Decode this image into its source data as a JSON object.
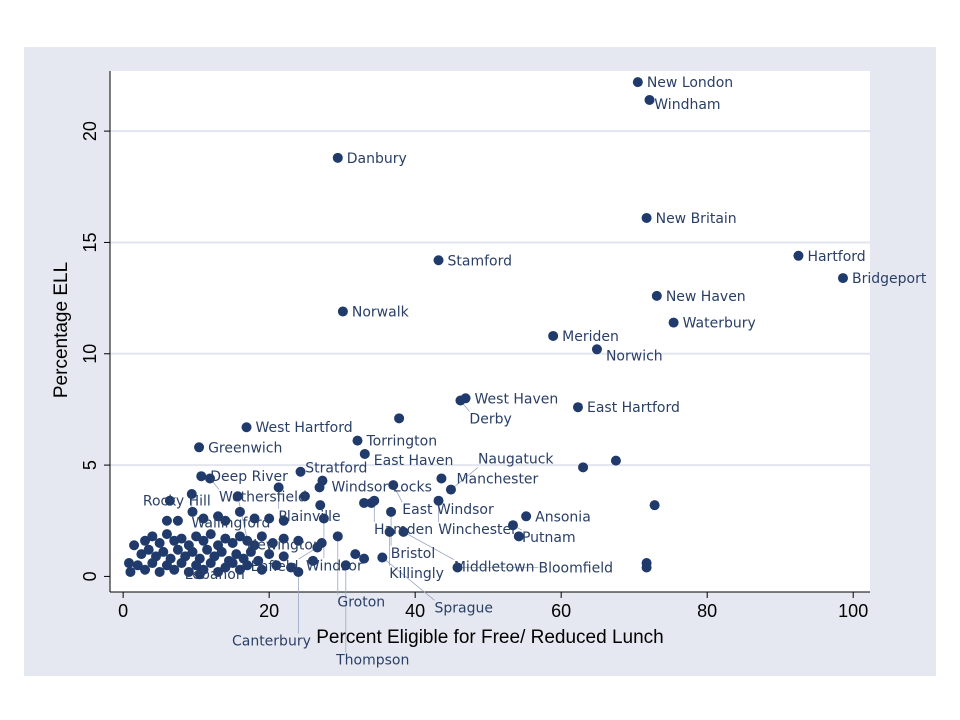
{
  "chart_data": {
    "type": "scatter",
    "title": "",
    "xlabel": "Percent Eligible for Free/ Reduced Lunch",
    "ylabel": "Percentage ELL",
    "xlim": [
      -1.8,
      102.3
    ],
    "ylim": [
      -0.7,
      22.7
    ],
    "xticks": [
      0,
      20,
      40,
      60,
      80,
      100
    ],
    "yticks": [
      0,
      5,
      10,
      15,
      20
    ],
    "grid": "horizontal",
    "colors": {
      "marker": "#1f3a6b",
      "label": "#2a3f66",
      "outer_bg": "#e6e8f1",
      "grid": "#e2e5ee"
    },
    "labeled_points": [
      {
        "label": "New London",
        "x": 70.5,
        "y": 22.2
      },
      {
        "label": "Windham",
        "x": 72.1,
        "y": 21.4
      },
      {
        "label": "Danbury",
        "x": 29.4,
        "y": 18.8
      },
      {
        "label": "New Britain",
        "x": 71.7,
        "y": 16.1
      },
      {
        "label": "Hartford",
        "x": 92.5,
        "y": 14.4
      },
      {
        "label": "Stamford",
        "x": 43.2,
        "y": 14.2
      },
      {
        "label": "Bridgeport",
        "x": 98.6,
        "y": 13.4
      },
      {
        "label": "New Haven",
        "x": 73.1,
        "y": 12.6
      },
      {
        "label": "Norwalk",
        "x": 30.1,
        "y": 11.9
      },
      {
        "label": "Waterbury",
        "x": 75.4,
        "y": 11.4
      },
      {
        "label": "Meriden",
        "x": 58.9,
        "y": 10.8
      },
      {
        "label": "Norwich",
        "x": 64.9,
        "y": 10.2
      },
      {
        "label": "West Haven",
        "x": 46.9,
        "y": 8.0
      },
      {
        "label": "Derby",
        "x": 46.2,
        "y": 7.9
      },
      {
        "label": "East Hartford",
        "x": 62.3,
        "y": 7.6
      },
      {
        "label": "West Hartford",
        "x": 16.9,
        "y": 6.7
      },
      {
        "label": "Torrington",
        "x": 32.1,
        "y": 6.1
      },
      {
        "label": "Greenwich",
        "x": 10.4,
        "y": 5.8
      },
      {
        "label": "East Haven",
        "x": 33.1,
        "y": 5.5
      },
      {
        "label": "Stratford",
        "x": 24.3,
        "y": 4.7
      },
      {
        "label": "Deep River",
        "x": 10.7,
        "y": 4.5
      },
      {
        "label": "Wethersfield",
        "x": 11.9,
        "y": 4.4
      },
      {
        "label": "Manchester",
        "x": 43.6,
        "y": 4.4
      },
      {
        "label": "Windsor Locks",
        "x": 27.3,
        "y": 4.3
      },
      {
        "label": "East Windsor",
        "x": 37.0,
        "y": 4.1
      },
      {
        "label": "Plainville",
        "x": 21.3,
        "y": 4.0
      },
      {
        "label": "Naugatuck",
        "x": 44.9,
        "y": 3.9
      },
      {
        "label": "Wallingford",
        "x": 9.4,
        "y": 3.7
      },
      {
        "label": "Newington",
        "x": 15.7,
        "y": 3.6
      },
      {
        "label": "Rocky Hill",
        "x": 6.4,
        "y": 3.4
      },
      {
        "label": "Hamden",
        "x": 34.4,
        "y": 3.4
      },
      {
        "label": "Winchester",
        "x": 43.2,
        "y": 3.4
      },
      {
        "label": "Bristol",
        "x": 36.7,
        "y": 2.9
      },
      {
        "label": "Ansonia",
        "x": 55.2,
        "y": 2.7
      },
      {
        "label": "Windsor",
        "x": 27.5,
        "y": 2.6
      },
      {
        "label": "Putnam",
        "x": 53.4,
        "y": 2.3
      },
      {
        "label": "Killingly",
        "x": 36.5,
        "y": 2.0
      },
      {
        "label": "Middletown",
        "x": 38.4,
        "y": 2.0
      },
      {
        "label": "Groton",
        "x": 29.4,
        "y": 1.8
      },
      {
        "label": "Enfield",
        "x": 26.6,
        "y": 1.3
      },
      {
        "label": "Sprague",
        "x": 35.5,
        "y": 0.85
      },
      {
        "label": "Bloomfield",
        "x": 45.8,
        "y": 0.4
      },
      {
        "label": "Thompson",
        "x": 30.5,
        "y": 0.5
      },
      {
        "label": "Canterbury",
        "x": 24.0,
        "y": 0.2
      },
      {
        "label": "Lebanon",
        "x": 10.5,
        "y": 0.1
      }
    ],
    "unlabeled_points": [
      [
        37.8,
        7.1
      ],
      [
        67.5,
        5.2
      ],
      [
        63.0,
        4.9
      ],
      [
        72.8,
        3.2
      ],
      [
        54.2,
        1.8
      ],
      [
        71.7,
        0.6
      ],
      [
        71.7,
        0.4
      ],
      [
        26.9,
        4.0
      ],
      [
        24.9,
        3.6
      ],
      [
        27.0,
        3.2
      ],
      [
        33.0,
        3.3
      ],
      [
        34.0,
        3.3
      ],
      [
        27.2,
        1.5
      ],
      [
        31.8,
        1.0
      ],
      [
        33.0,
        0.8
      ],
      [
        7.5,
        2.5
      ],
      [
        6.0,
        2.5
      ],
      [
        9.5,
        2.9
      ],
      [
        11.0,
        2.6
      ],
      [
        13.0,
        2.7
      ],
      [
        14.0,
        2.5
      ],
      [
        16.0,
        2.9
      ],
      [
        18.0,
        2.6
      ],
      [
        20.0,
        2.6
      ],
      [
        22.0,
        2.5
      ],
      [
        3.0,
        1.6
      ],
      [
        4.0,
        1.8
      ],
      [
        5.0,
        1.5
      ],
      [
        6.0,
        1.9
      ],
      [
        7.0,
        1.6
      ],
      [
        8.0,
        1.7
      ],
      [
        9.0,
        1.4
      ],
      [
        10.0,
        1.8
      ],
      [
        11.0,
        1.6
      ],
      [
        12.0,
        1.9
      ],
      [
        13.0,
        1.4
      ],
      [
        14.0,
        1.7
      ],
      [
        15.0,
        1.5
      ],
      [
        16.0,
        1.8
      ],
      [
        17.0,
        1.6
      ],
      [
        18.0,
        1.4
      ],
      [
        19.0,
        1.8
      ],
      [
        20.5,
        1.5
      ],
      [
        22.0,
        1.7
      ],
      [
        24.0,
        1.6
      ],
      [
        1.5,
        1.4
      ],
      [
        2.5,
        1.0
      ],
      [
        3.5,
        1.2
      ],
      [
        4.5,
        0.9
      ],
      [
        5.5,
        1.1
      ],
      [
        6.5,
        0.8
      ],
      [
        7.5,
        1.2
      ],
      [
        8.5,
        0.9
      ],
      [
        9.5,
        1.1
      ],
      [
        10.5,
        0.8
      ],
      [
        11.5,
        1.2
      ],
      [
        12.5,
        0.9
      ],
      [
        13.5,
        1.1
      ],
      [
        14.5,
        0.7
      ],
      [
        15.5,
        1.0
      ],
      [
        16.5,
        0.8
      ],
      [
        17.5,
        1.1
      ],
      [
        18.5,
        0.7
      ],
      [
        20.0,
        1.0
      ],
      [
        22.0,
        0.9
      ],
      [
        0.8,
        0.6
      ],
      [
        1.0,
        0.2
      ],
      [
        2.0,
        0.5
      ],
      [
        3.0,
        0.3
      ],
      [
        4.0,
        0.6
      ],
      [
        5.0,
        0.2
      ],
      [
        6.0,
        0.5
      ],
      [
        7.0,
        0.3
      ],
      [
        8.0,
        0.6
      ],
      [
        9.0,
        0.2
      ],
      [
        10.0,
        0.5
      ],
      [
        11.0,
        0.3
      ],
      [
        12.0,
        0.6
      ],
      [
        13.0,
        0.2
      ],
      [
        14.0,
        0.4
      ],
      [
        15.0,
        0.6
      ],
      [
        16.0,
        0.3
      ],
      [
        17.0,
        0.5
      ],
      [
        19.0,
        0.3
      ],
      [
        21.0,
        0.5
      ],
      [
        23.0,
        0.4
      ],
      [
        26.0,
        0.7
      ]
    ]
  }
}
